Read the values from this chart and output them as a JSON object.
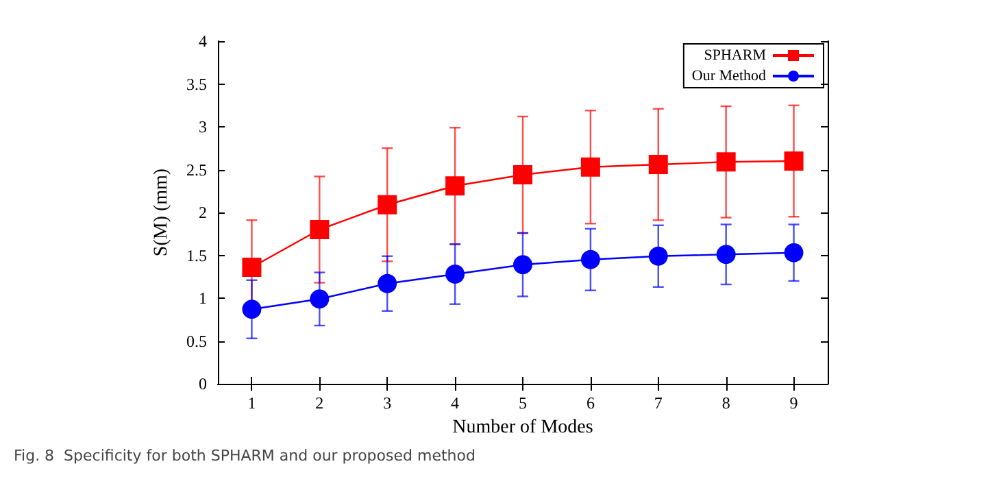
{
  "chart_data": {
    "type": "line",
    "xlabel": "Number of Modes",
    "ylabel": "S(M) (mm)",
    "x": [
      1,
      2,
      3,
      4,
      5,
      6,
      7,
      8,
      9
    ],
    "xlim": [
      0.5,
      9.5
    ],
    "xticks": [
      1,
      2,
      3,
      4,
      5,
      6,
      7,
      8,
      9
    ],
    "ylim": [
      0,
      4
    ],
    "yticks": [
      0,
      0.5,
      1,
      1.5,
      2,
      2.5,
      3,
      3.5,
      4
    ],
    "grid": false,
    "legend": "top right",
    "line_style": "solid",
    "series": [
      {
        "name": "SPHARM",
        "color": "#ff0000",
        "marker": "square",
        "values": [
          1.36,
          1.8,
          2.09,
          2.31,
          2.44,
          2.53,
          2.56,
          2.59,
          2.6
        ],
        "errors": [
          0.55,
          0.62,
          0.66,
          0.68,
          0.68,
          0.66,
          0.65,
          0.65,
          0.65
        ]
      },
      {
        "name": "Our Method",
        "color": "#0000ff",
        "marker": "circle",
        "values": [
          0.87,
          0.99,
          1.17,
          1.28,
          1.39,
          1.45,
          1.49,
          1.51,
          1.53
        ],
        "errors": [
          0.34,
          0.31,
          0.32,
          0.35,
          0.37,
          0.36,
          0.36,
          0.35,
          0.33
        ]
      }
    ],
    "annotations": [
      "Fig. 8  Specificity for both SPHARM and our proposed method"
    ]
  }
}
